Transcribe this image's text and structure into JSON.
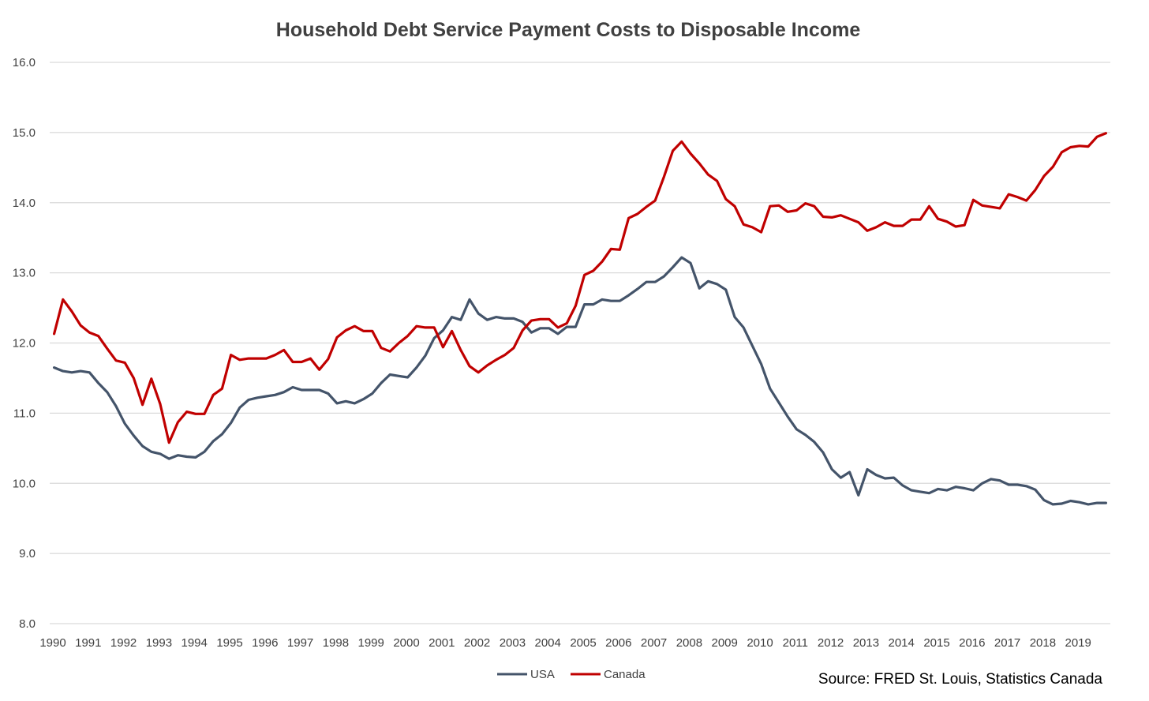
{
  "chart_data": {
    "type": "line",
    "title": "Household Debt Service Payment Costs to Disposable Income",
    "xlabel": "",
    "ylabel": "",
    "ylim": [
      8.0,
      16.0
    ],
    "yticks": [
      "8.0",
      "9.0",
      "10.0",
      "11.0",
      "12.0",
      "13.0",
      "14.0",
      "15.0",
      "16.0"
    ],
    "xticks": [
      "1990",
      "1991",
      "1992",
      "1993",
      "1994",
      "1995",
      "1996",
      "1997",
      "1998",
      "1999",
      "2000",
      "2001",
      "2002",
      "2003",
      "2004",
      "2005",
      "2006",
      "2007",
      "2008",
      "2009",
      "2010",
      "2011",
      "2012",
      "2013",
      "2014",
      "2015",
      "2016",
      "2017",
      "2018",
      "2019"
    ],
    "x_start": 1990.0,
    "x_step": 0.25,
    "grid": true,
    "legend_position": "bottom",
    "source": "Source: FRED St. Louis, Statistics Canada",
    "series": [
      {
        "name": "USA",
        "color": "#44546a",
        "values": [
          11.65,
          11.6,
          11.58,
          11.6,
          11.58,
          11.43,
          11.3,
          11.1,
          10.85,
          10.68,
          10.53,
          10.45,
          10.42,
          10.35,
          10.4,
          10.38,
          10.37,
          10.45,
          10.6,
          10.7,
          10.86,
          11.08,
          11.19,
          11.22,
          11.24,
          11.26,
          11.3,
          11.37,
          11.33,
          11.33,
          11.33,
          11.28,
          11.14,
          11.17,
          11.14,
          11.2,
          11.28,
          11.43,
          11.55,
          11.53,
          11.51,
          11.65,
          11.82,
          12.07,
          12.18,
          12.37,
          12.33,
          12.62,
          12.42,
          12.33,
          12.37,
          12.35,
          12.35,
          12.3,
          12.15,
          12.21,
          12.21,
          12.13,
          12.23,
          12.23,
          12.55,
          12.55,
          12.62,
          12.6,
          12.6,
          12.68,
          12.77,
          12.87,
          12.87,
          12.95,
          13.08,
          13.22,
          13.14,
          12.78,
          12.88,
          12.84,
          12.76,
          12.37,
          12.22,
          11.96,
          11.7,
          11.35,
          11.15,
          10.95,
          10.77,
          10.69,
          10.59,
          10.44,
          10.2,
          10.08,
          10.16,
          9.83,
          10.2,
          10.12,
          10.07,
          10.08,
          9.97,
          9.9,
          9.88,
          9.86,
          9.92,
          9.9,
          9.95,
          9.93,
          9.9,
          10.0,
          10.06,
          10.04,
          9.98,
          9.98,
          9.96,
          9.91,
          9.76,
          9.7,
          9.71,
          9.75,
          9.73,
          9.7,
          9.72,
          9.72
        ]
      },
      {
        "name": "Canada",
        "color": "#c00000",
        "values": [
          12.13,
          12.62,
          12.45,
          12.25,
          12.15,
          12.1,
          11.92,
          11.75,
          11.72,
          11.5,
          11.12,
          11.49,
          11.13,
          10.58,
          10.87,
          11.02,
          10.99,
          10.99,
          11.26,
          11.35,
          11.83,
          11.76,
          11.78,
          11.78,
          11.78,
          11.83,
          11.9,
          11.73,
          11.73,
          11.78,
          11.62,
          11.77,
          12.08,
          12.18,
          12.24,
          12.17,
          12.17,
          11.93,
          11.88,
          12.0,
          12.1,
          12.24,
          12.22,
          12.22,
          11.94,
          12.17,
          11.9,
          11.67,
          11.58,
          11.68,
          11.76,
          11.83,
          11.93,
          12.18,
          12.32,
          12.34,
          12.34,
          12.22,
          12.28,
          12.53,
          12.97,
          13.03,
          13.16,
          13.34,
          13.33,
          13.78,
          13.84,
          13.94,
          14.03,
          14.37,
          14.74,
          14.87,
          14.7,
          14.56,
          14.4,
          14.31,
          14.05,
          13.95,
          13.69,
          13.65,
          13.58,
          13.95,
          13.96,
          13.87,
          13.89,
          13.99,
          13.95,
          13.8,
          13.79,
          13.82,
          13.77,
          13.72,
          13.6,
          13.65,
          13.72,
          13.67,
          13.67,
          13.76,
          13.76,
          13.95,
          13.77,
          13.73,
          13.66,
          13.68,
          14.04,
          13.96,
          13.94,
          13.92,
          14.12,
          14.08,
          14.03,
          14.18,
          14.38,
          14.51,
          14.72,
          14.79,
          14.81,
          14.8,
          14.94,
          14.99
        ]
      }
    ]
  }
}
